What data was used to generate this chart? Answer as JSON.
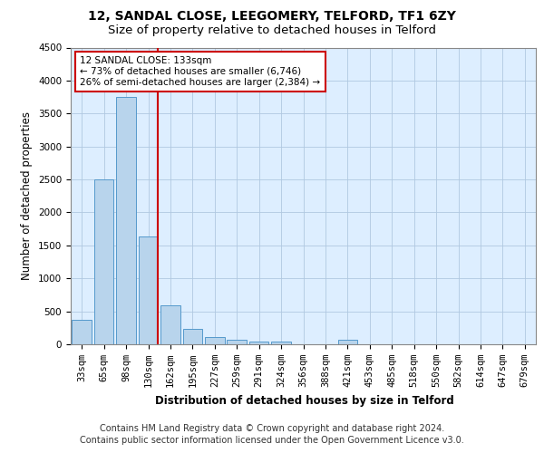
{
  "title1": "12, SANDAL CLOSE, LEEGOMERY, TELFORD, TF1 6ZY",
  "title2": "Size of property relative to detached houses in Telford",
  "xlabel": "Distribution of detached houses by size in Telford",
  "ylabel": "Number of detached properties",
  "categories": [
    "33sqm",
    "65sqm",
    "98sqm",
    "130sqm",
    "162sqm",
    "195sqm",
    "227sqm",
    "259sqm",
    "291sqm",
    "324sqm",
    "356sqm",
    "388sqm",
    "421sqm",
    "453sqm",
    "485sqm",
    "518sqm",
    "550sqm",
    "582sqm",
    "614sqm",
    "647sqm",
    "679sqm"
  ],
  "values": [
    370,
    2500,
    3750,
    1640,
    590,
    230,
    110,
    65,
    40,
    40,
    0,
    0,
    65,
    0,
    0,
    0,
    0,
    0,
    0,
    0,
    0
  ],
  "bar_color": "#b8d4ec",
  "bar_edge_color": "#5599cc",
  "vline_color": "#cc0000",
  "vline_x_index": 3,
  "annotation_line1": "12 SANDAL CLOSE: 133sqm",
  "annotation_line2": "← 73% of detached houses are smaller (6,746)",
  "annotation_line3": "26% of semi-detached houses are larger (2,384) →",
  "annotation_box_facecolor": "#ffffff",
  "annotation_box_edgecolor": "#cc0000",
  "ylim": [
    0,
    4500
  ],
  "yticks": [
    0,
    500,
    1000,
    1500,
    2000,
    2500,
    3000,
    3500,
    4000,
    4500
  ],
  "footer_line1": "Contains HM Land Registry data © Crown copyright and database right 2024.",
  "footer_line2": "Contains public sector information licensed under the Open Government Licence v3.0.",
  "bg_color": "#ddeeff",
  "title1_fontsize": 10,
  "title2_fontsize": 9.5,
  "axis_label_fontsize": 8.5,
  "tick_fontsize": 7.5,
  "footer_fontsize": 7,
  "annotation_fontsize": 7.5
}
